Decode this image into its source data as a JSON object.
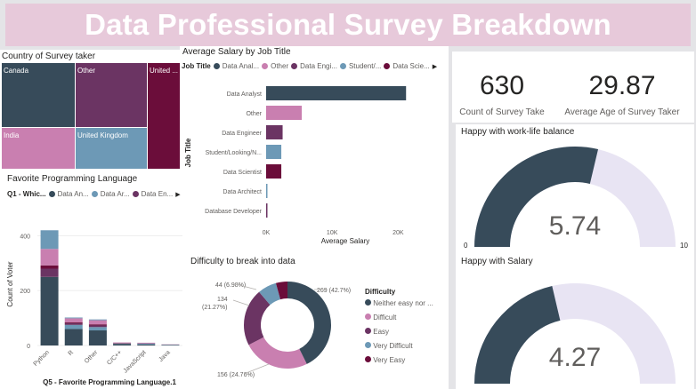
{
  "header": {
    "title": "Data Professional Survey Breakdown"
  },
  "colors": {
    "dark": "#374b5a",
    "purple": "#6b3463",
    "pink": "#c97fb0",
    "blue": "#6d99b6",
    "maroon": "#6b0d3a",
    "gauge_bg": "#e8e4f3",
    "title_bg": "#e7c9da"
  },
  "treemap": {
    "title": "Country of Survey taker",
    "tiles": [
      {
        "label": "Canada",
        "color": "#374b5a"
      },
      {
        "label": "Other",
        "color": "#6b3463"
      },
      {
        "label": "United ...",
        "color": "#6b0d3a"
      },
      {
        "label": "India",
        "color": "#c97fb0"
      },
      {
        "label": "United Kingdom",
        "color": "#6d99b6"
      }
    ]
  },
  "salary_chart": {
    "title": "Average Salary by Job Title",
    "legend_title": "Job Title",
    "legend": [
      {
        "label": "Data Anal...",
        "color": "#374b5a"
      },
      {
        "label": "Other",
        "color": "#c97fb0"
      },
      {
        "label": "Data Engi...",
        "color": "#6b3463"
      },
      {
        "label": "Student/...",
        "color": "#6d99b6"
      },
      {
        "label": "Data Scie...",
        "color": "#6b0d3a"
      }
    ],
    "ylabel": "Job Title",
    "xlabel": "Average Salary",
    "xticks": [
      "0K",
      "10K",
      "20K"
    ]
  },
  "language_chart": {
    "title": "Favorite Programming Language",
    "legend_title": "Q1 - Whic...",
    "legend": [
      {
        "label": "Data An...",
        "color": "#374b5a"
      },
      {
        "label": "Data Ar...",
        "color": "#6d99b6"
      },
      {
        "label": "Data En...",
        "color": "#6b3463"
      }
    ],
    "ylabel": "Count of Voter",
    "xlabel": "Q5 - Favorite Programming Language.1",
    "yticks": [
      "0",
      "200",
      "400"
    ]
  },
  "difficulty_chart": {
    "title": "Difficulty to break into data",
    "legend_title": "Difficulty",
    "legend": [
      {
        "label": "Neither easy nor ...",
        "color": "#374b5a"
      },
      {
        "label": "Difficult",
        "color": "#c97fb0"
      },
      {
        "label": "Easy",
        "color": "#6b3463"
      },
      {
        "label": "Very Difficult",
        "color": "#6d99b6"
      },
      {
        "label": "Very Easy",
        "color": "#6b0d3a"
      }
    ],
    "labels": [
      "269 (42.7%)",
      "156 (24.76%)",
      "134",
      "(21.27%)",
      "44 (6.98%)"
    ]
  },
  "kpis": [
    {
      "value": "630",
      "label": "Count of Survey Take"
    },
    {
      "value": "29.87",
      "label": "Average Age of Survey Taker"
    }
  ],
  "gauges": [
    {
      "title": "Happy with work-life balance",
      "value": "5.74",
      "min": "0",
      "max": "10"
    },
    {
      "title": "Happy with Salary",
      "value": "4.27",
      "min": "0",
      "max": "10"
    }
  ],
  "chart_data": [
    {
      "type": "treemap",
      "title": "Country of Survey taker",
      "categories": [
        "Canada",
        "Other",
        "United ...",
        "India",
        "United Kingdom"
      ]
    },
    {
      "type": "bar",
      "orientation": "horizontal",
      "title": "Average Salary by Job Title",
      "categories": [
        "Data Analyst",
        "Other",
        "Data Engineer",
        "Student/Looking/N...",
        "Data Scientist",
        "Data Architect",
        "Database Developer"
      ],
      "values": [
        21200,
        5400,
        2500,
        2300,
        2300,
        200,
        150
      ],
      "colors": [
        "#374b5a",
        "#c97fb0",
        "#6b3463",
        "#6d99b6",
        "#6b0d3a",
        "#6d99b6",
        "#6b3463"
      ],
      "xlabel": "Average Salary",
      "ylabel": "Job Title",
      "xlim": [
        0,
        24000
      ]
    },
    {
      "type": "bar",
      "stacked": true,
      "title": "Favorite Programming Language",
      "categories": [
        "Python",
        "R",
        "Other",
        "C/C++",
        "JavaScript",
        "Java"
      ],
      "series": [
        {
          "name": "Data An...",
          "values": [
            250,
            60,
            55,
            6,
            4,
            2
          ]
        },
        {
          "name": "Data Ar...",
          "values": [
            0,
            15,
            12,
            1,
            3,
            1
          ]
        },
        {
          "name": "Data En...",
          "values": [
            30,
            6,
            6,
            1,
            1,
            0
          ]
        },
        {
          "name": "",
          "values": [
            12,
            3,
            4,
            1,
            0,
            0
          ]
        },
        {
          "name": "",
          "values": [
            60,
            15,
            15,
            2,
            2,
            1
          ]
        },
        {
          "name": "",
          "values": [
            68,
            3,
            3,
            0,
            0,
            0
          ]
        }
      ],
      "series_colors": [
        "#374b5a",
        "#6d99b6",
        "#6b3463",
        "#6b0d3a",
        "#c97fb0",
        "#6d99b6"
      ],
      "xlabel": "Q5 - Favorite Programming Language.1",
      "ylabel": "Count of Voter",
      "ylim": [
        0,
        450
      ]
    },
    {
      "type": "pie",
      "donut": true,
      "title": "Difficulty to break into data",
      "categories": [
        "Neither easy nor difficult",
        "Difficult",
        "Easy",
        "Very Difficult",
        "Very Easy"
      ],
      "values": [
        269,
        156,
        134,
        44,
        27
      ],
      "colors": [
        "#374b5a",
        "#c97fb0",
        "#6b3463",
        "#6d99b6",
        "#6b0d3a"
      ]
    },
    {
      "type": "gauge",
      "title": "Happy with work-life balance",
      "value": 5.74,
      "min": 0,
      "max": 10
    },
    {
      "type": "gauge",
      "title": "Happy with Salary",
      "value": 4.27,
      "min": 0,
      "max": 10
    }
  ]
}
